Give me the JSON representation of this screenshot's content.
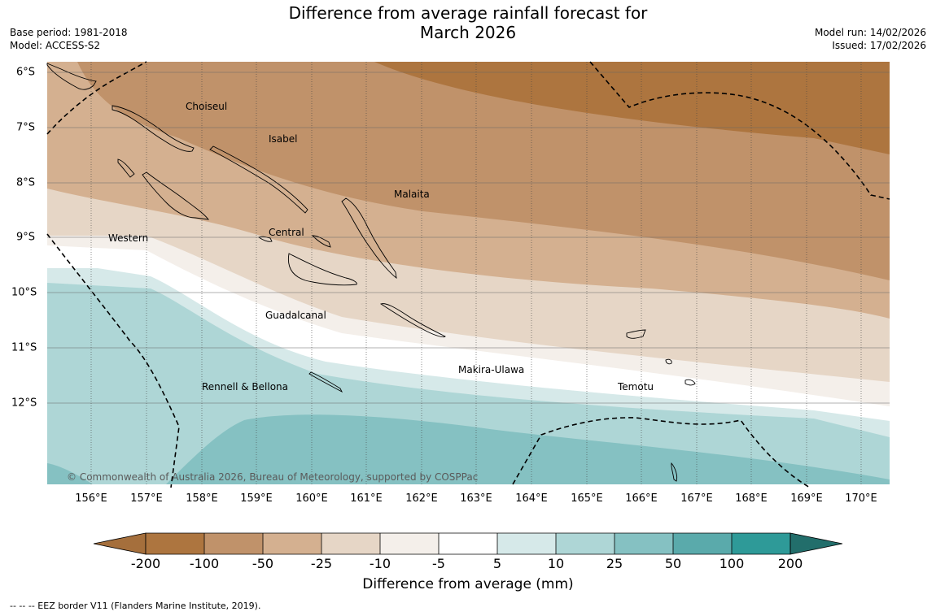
{
  "title_line1": "Difference from average rainfall forecast for",
  "title_line2": "March 2026",
  "base_period": "Base period: 1981-2018",
  "model": "Model: ACCESS-S2",
  "model_run": "Model run: 14/02/2026",
  "issued": "Issued: 17/02/2026",
  "lon_labels": [
    "156°E",
    "157°E",
    "158°E",
    "159°E",
    "160°E",
    "161°E",
    "162°E",
    "163°E",
    "164°E",
    "165°E",
    "166°E",
    "167°E",
    "168°E",
    "169°E",
    "170°E"
  ],
  "lat_labels": [
    "6°S",
    "7°S",
    "8°S",
    "9°S",
    "10°S",
    "11°S",
    "12°S"
  ],
  "regions": {
    "choiseul": "Choiseul",
    "isabel": "Isabel",
    "malaita": "Malaita",
    "western": "Western",
    "central": "Central",
    "guadalcanal": "Guadalcanal",
    "makira": "Makira-Ulawa",
    "temotu": "Temotu",
    "rennell": "Rennell & Bellona"
  },
  "copyright": "© Commonwealth of Australia 2026, Bureau of Meteorology, supported by COSPPac",
  "legend": {
    "ticks": [
      "-200",
      "-100",
      "-50",
      "-25",
      "-10",
      "-5",
      "5",
      "10",
      "25",
      "50",
      "100",
      "200"
    ],
    "colors": [
      "#a56f3c",
      "#ad753f",
      "#c0926a",
      "#d4b090",
      "#e6d6c6",
      "#f4efea",
      "#ffffff",
      "#d6e9e9",
      "#aed6d6",
      "#85c1c2",
      "#5aaaab",
      "#2e9a98",
      "#226e6b"
    ],
    "label": "Difference from average (mm)"
  },
  "footnote": "--  --  -- EEZ border V11 (Flanders Marine Institute, 2019)."
}
